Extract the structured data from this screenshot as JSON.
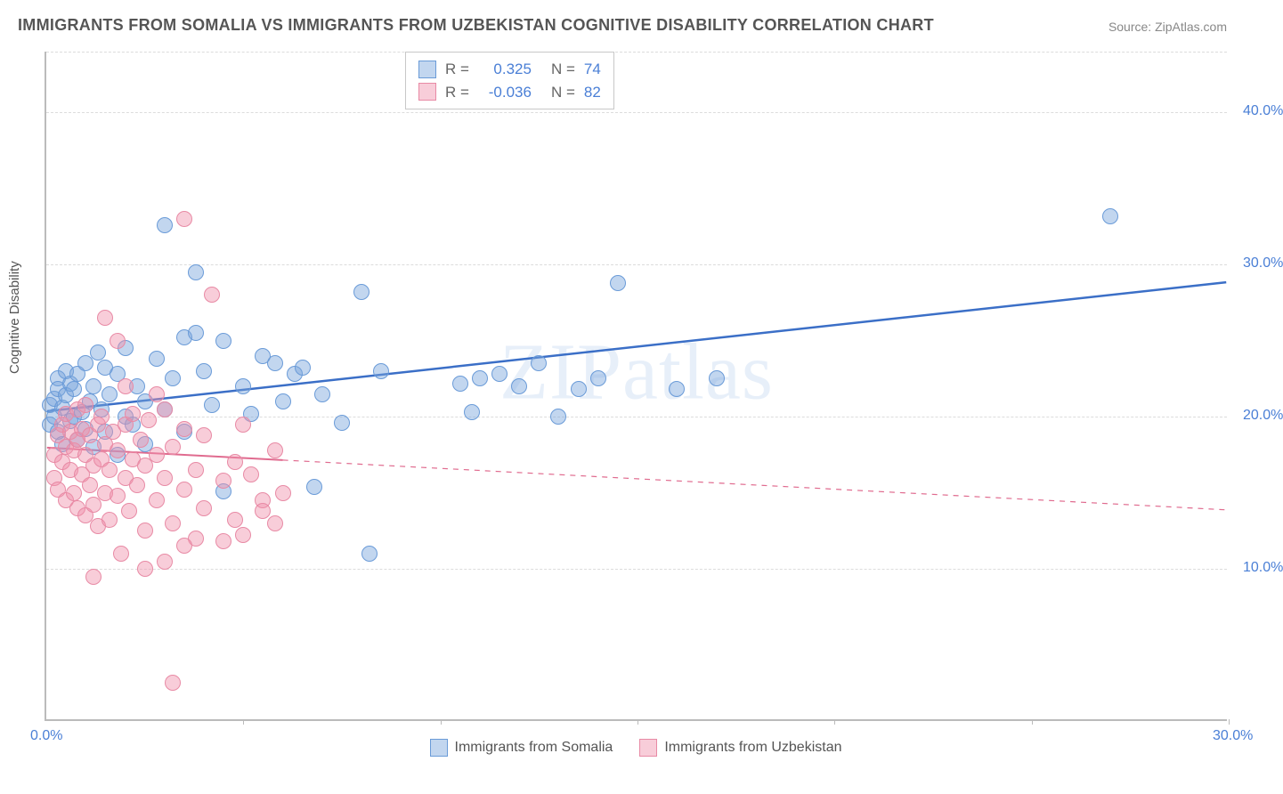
{
  "chart": {
    "type": "scatter",
    "title": "IMMIGRANTS FROM SOMALIA VS IMMIGRANTS FROM UZBEKISTAN COGNITIVE DISABILITY CORRELATION CHART",
    "source_label": "Source: ",
    "source_value": "ZipAtlas.com",
    "ylabel": "Cognitive Disability",
    "watermark": "ZIPatlas",
    "background_color": "#ffffff",
    "grid_color": "#dcdcdc",
    "axis_color": "#bbbbbb",
    "tick_font_color": "#4a7fd6",
    "tick_fontsize": 16,
    "title_fontsize": 18,
    "label_fontsize": 15,
    "marker_radius": 9,
    "xlim": [
      0,
      30
    ],
    "ylim": [
      0,
      44
    ],
    "xticks": [
      {
        "val": 0,
        "label": "0.0%"
      },
      {
        "val": 30,
        "label": "30.0%"
      }
    ],
    "xtick_marks": [
      5,
      10,
      15,
      20,
      25,
      30
    ],
    "yticks": [
      {
        "val": 10,
        "label": "10.0%"
      },
      {
        "val": 20,
        "label": "20.0%"
      },
      {
        "val": 30,
        "label": "30.0%"
      },
      {
        "val": 40,
        "label": "40.0%"
      }
    ],
    "y_gridlines": [
      10,
      20,
      30,
      40,
      44
    ],
    "series": [
      {
        "name": "Immigrants from Somalia",
        "color_fill": "rgba(120,165,220,0.45)",
        "color_stroke": "#6a9bd8",
        "R": "0.325",
        "N": "74",
        "trend": {
          "x1": 0,
          "y1": 20.3,
          "x2": 30,
          "y2": 28.8,
          "solid_to_x": 30,
          "stroke": "#3b6fc7",
          "width": 2.5
        },
        "points": [
          [
            0.1,
            20.8
          ],
          [
            0.1,
            19.5
          ],
          [
            0.2,
            21.2
          ],
          [
            0.2,
            20.0
          ],
          [
            0.3,
            22.5
          ],
          [
            0.3,
            19.0
          ],
          [
            0.3,
            21.8
          ],
          [
            0.4,
            18.2
          ],
          [
            0.4,
            20.6
          ],
          [
            0.5,
            23.0
          ],
          [
            0.5,
            21.4
          ],
          [
            0.6,
            19.7
          ],
          [
            0.6,
            22.2
          ],
          [
            0.7,
            20.0
          ],
          [
            0.7,
            21.8
          ],
          [
            0.8,
            18.5
          ],
          [
            0.8,
            22.8
          ],
          [
            0.9,
            20.3
          ],
          [
            1.0,
            19.2
          ],
          [
            1.0,
            23.5
          ],
          [
            1.1,
            21.0
          ],
          [
            1.2,
            18.0
          ],
          [
            1.2,
            22.0
          ],
          [
            1.3,
            24.2
          ],
          [
            1.4,
            20.5
          ],
          [
            1.5,
            19.0
          ],
          [
            1.5,
            23.2
          ],
          [
            1.6,
            21.5
          ],
          [
            1.8,
            17.5
          ],
          [
            1.8,
            22.8
          ],
          [
            2.0,
            20.0
          ],
          [
            2.0,
            24.5
          ],
          [
            2.2,
            19.5
          ],
          [
            2.3,
            22.0
          ],
          [
            2.5,
            21.0
          ],
          [
            2.5,
            18.2
          ],
          [
            2.8,
            23.8
          ],
          [
            3.0,
            32.6
          ],
          [
            3.0,
            20.5
          ],
          [
            3.2,
            22.5
          ],
          [
            3.5,
            19.0
          ],
          [
            3.5,
            25.2
          ],
          [
            3.8,
            25.5
          ],
          [
            3.8,
            29.5
          ],
          [
            4.0,
            23.0
          ],
          [
            4.2,
            20.8
          ],
          [
            4.5,
            15.1
          ],
          [
            4.5,
            25.0
          ],
          [
            5.0,
            22.0
          ],
          [
            5.2,
            20.2
          ],
          [
            5.5,
            24.0
          ],
          [
            5.8,
            23.5
          ],
          [
            6.0,
            21.0
          ],
          [
            6.3,
            22.8
          ],
          [
            6.5,
            23.2
          ],
          [
            6.8,
            15.4
          ],
          [
            7.0,
            21.5
          ],
          [
            7.5,
            19.6
          ],
          [
            8.0,
            28.2
          ],
          [
            8.2,
            11.0
          ],
          [
            8.5,
            23.0
          ],
          [
            10.5,
            22.2
          ],
          [
            10.8,
            20.3
          ],
          [
            11.0,
            22.5
          ],
          [
            11.5,
            22.8
          ],
          [
            12.5,
            23.5
          ],
          [
            13.0,
            20.0
          ],
          [
            13.5,
            21.8
          ],
          [
            14.0,
            22.5
          ],
          [
            14.5,
            28.8
          ],
          [
            16.0,
            21.8
          ],
          [
            17.0,
            22.5
          ],
          [
            27.0,
            33.2
          ],
          [
            12.0,
            22.0
          ]
        ]
      },
      {
        "name": "Immigrants from Uzbekistan",
        "color_fill": "rgba(240,145,170,0.45)",
        "color_stroke": "#e88aa5",
        "R": "-0.036",
        "N": "82",
        "trend": {
          "x1": 0,
          "y1": 17.9,
          "x2": 30,
          "y2": 13.8,
          "solid_to_x": 6,
          "stroke": "#e06b8f",
          "width": 2
        },
        "points": [
          [
            0.2,
            17.5
          ],
          [
            0.2,
            16.0
          ],
          [
            0.3,
            18.8
          ],
          [
            0.3,
            15.2
          ],
          [
            0.4,
            19.5
          ],
          [
            0.4,
            17.0
          ],
          [
            0.5,
            20.2
          ],
          [
            0.5,
            14.5
          ],
          [
            0.5,
            18.0
          ],
          [
            0.6,
            16.5
          ],
          [
            0.6,
            19.0
          ],
          [
            0.7,
            15.0
          ],
          [
            0.7,
            17.8
          ],
          [
            0.8,
            20.5
          ],
          [
            0.8,
            14.0
          ],
          [
            0.8,
            18.5
          ],
          [
            0.9,
            16.2
          ],
          [
            0.9,
            19.2
          ],
          [
            1.0,
            13.5
          ],
          [
            1.0,
            17.5
          ],
          [
            1.0,
            20.8
          ],
          [
            1.1,
            15.5
          ],
          [
            1.1,
            18.8
          ],
          [
            1.2,
            14.2
          ],
          [
            1.2,
            16.8
          ],
          [
            1.3,
            19.5
          ],
          [
            1.3,
            12.8
          ],
          [
            1.4,
            17.2
          ],
          [
            1.4,
            20.0
          ],
          [
            1.5,
            15.0
          ],
          [
            1.5,
            18.2
          ],
          [
            1.5,
            26.5
          ],
          [
            1.6,
            13.2
          ],
          [
            1.6,
            16.5
          ],
          [
            1.7,
            19.0
          ],
          [
            1.8,
            14.8
          ],
          [
            1.8,
            17.8
          ],
          [
            1.8,
            25.0
          ],
          [
            1.9,
            11.0
          ],
          [
            2.0,
            16.0
          ],
          [
            2.0,
            19.5
          ],
          [
            2.0,
            22.0
          ],
          [
            2.1,
            13.8
          ],
          [
            2.2,
            17.2
          ],
          [
            2.2,
            20.2
          ],
          [
            2.3,
            15.5
          ],
          [
            2.4,
            18.5
          ],
          [
            2.5,
            12.5
          ],
          [
            2.5,
            16.8
          ],
          [
            2.6,
            19.8
          ],
          [
            2.8,
            14.5
          ],
          [
            2.8,
            17.5
          ],
          [
            3.0,
            10.5
          ],
          [
            3.0,
            16.0
          ],
          [
            3.0,
            20.5
          ],
          [
            3.2,
            13.0
          ],
          [
            3.2,
            18.0
          ],
          [
            3.5,
            15.2
          ],
          [
            3.5,
            19.2
          ],
          [
            3.5,
            33.0
          ],
          [
            3.8,
            12.0
          ],
          [
            3.8,
            16.5
          ],
          [
            4.0,
            14.0
          ],
          [
            4.0,
            18.8
          ],
          [
            4.2,
            28.0
          ],
          [
            4.5,
            15.8
          ],
          [
            4.8,
            13.2
          ],
          [
            4.8,
            17.0
          ],
          [
            5.0,
            19.5
          ],
          [
            5.0,
            12.2
          ],
          [
            5.2,
            16.2
          ],
          [
            5.5,
            14.5
          ],
          [
            5.5,
            13.8
          ],
          [
            5.8,
            17.8
          ],
          [
            5.8,
            13.0
          ],
          [
            6.0,
            15.0
          ],
          [
            1.2,
            9.5
          ],
          [
            2.5,
            10.0
          ],
          [
            3.2,
            2.5
          ],
          [
            3.5,
            11.5
          ],
          [
            4.5,
            11.8
          ],
          [
            2.8,
            21.5
          ]
        ]
      }
    ],
    "stats_box": {
      "r_label": "R =",
      "n_label": "N ="
    }
  }
}
